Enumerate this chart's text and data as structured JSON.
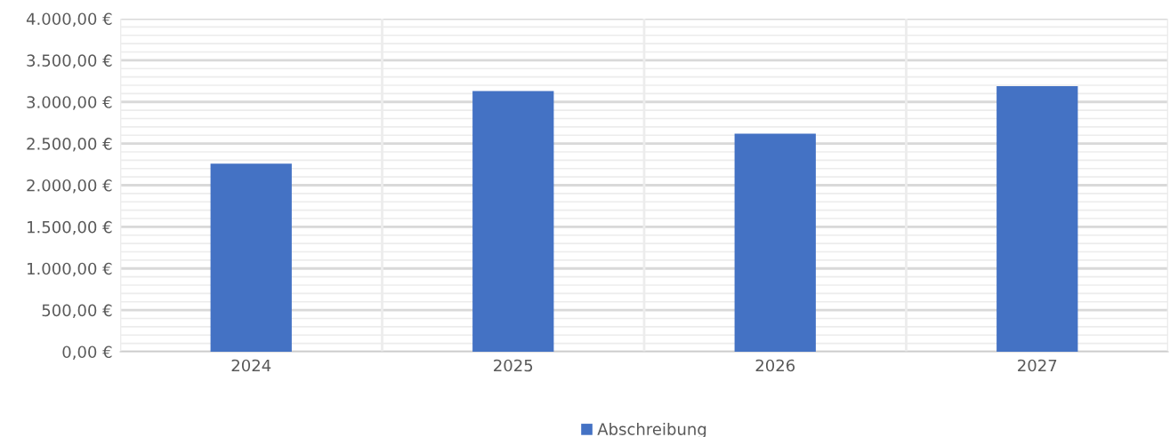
{
  "chart_data": {
    "type": "bar",
    "categories": [
      "2024",
      "2025",
      "2026",
      "2027"
    ],
    "series": [
      {
        "name": "Abschreibung",
        "color": "#4472c4",
        "values": [
          2260,
          3130,
          2620,
          3190
        ]
      }
    ],
    "ylim": [
      0,
      4000
    ],
    "yticks": [
      {
        "value": 0,
        "label": "0,00 €"
      },
      {
        "value": 500,
        "label": "500,00 €"
      },
      {
        "value": 1000,
        "label": "1.000,00 €"
      },
      {
        "value": 1500,
        "label": "1.500,00 €"
      },
      {
        "value": 2000,
        "label": "2.000,00 €"
      },
      {
        "value": 2500,
        "label": "2.500,00 €"
      },
      {
        "value": 3000,
        "label": "3.000,00 €"
      },
      {
        "value": 3500,
        "label": "3.500,00 €"
      },
      {
        "value": 4000,
        "label": "4.000,00 €"
      }
    ],
    "grid": true,
    "legend": "bottom"
  }
}
